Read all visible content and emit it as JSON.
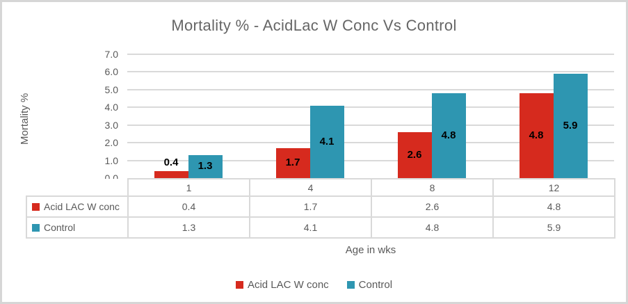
{
  "chart_data": {
    "type": "bar",
    "title": "Mortality % - AcidLac W Conc Vs Control",
    "xlabel": "Age in wks",
    "ylabel": "Mortality %",
    "categories": [
      "1",
      "4",
      "8",
      "12"
    ],
    "series": [
      {
        "name": "Acid LAC W conc",
        "color": "#D62A1E",
        "values": [
          0.4,
          1.7,
          2.6,
          4.8
        ]
      },
      {
        "name": "Control",
        "color": "#2E96B1",
        "values": [
          1.3,
          4.1,
          4.8,
          5.9
        ]
      }
    ],
    "ylim": [
      0,
      7
    ],
    "ytick_labels": [
      "0.0",
      "1.0",
      "2.0",
      "3.0",
      "4.0",
      "5.0",
      "6.0",
      "7.0"
    ],
    "grid": true,
    "data_labels": true,
    "legend_position": "bottom",
    "data_table_shown": true
  },
  "style": {
    "text_color": "#595959",
    "grid_color": "#D9D9D9",
    "data_label_color": "#000000",
    "frame_border_color": "#D6D6D6"
  }
}
